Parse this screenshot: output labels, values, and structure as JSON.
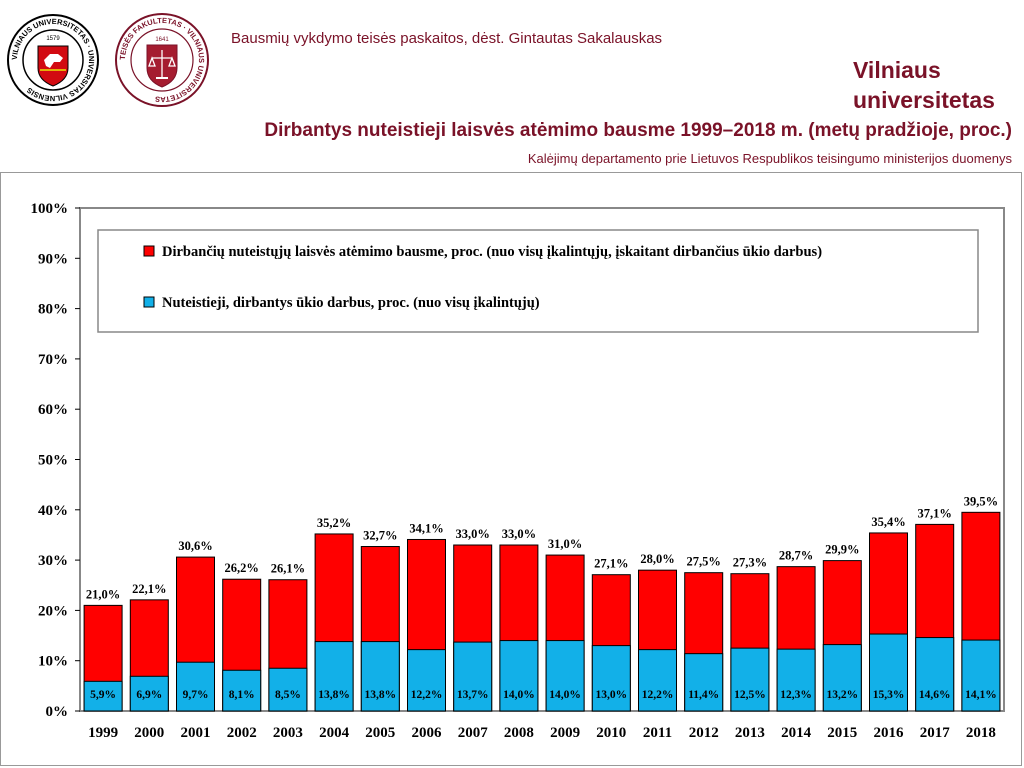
{
  "header": {
    "title": "Bausmių vykdymo teisės paskaitos, dėst. Gintautas Sakalauskas",
    "logo_left_text": "VILNIAUS UNIVERSITETAS · UNIVERSITAS VILNENSIS",
    "logo_left_year": "1579",
    "logo_right_text": "TEISĖS FAKULTETAS · VILNIAUS UNIVERSITETAS",
    "logo_right_year": "1641",
    "brand_line1": "Vilniaus",
    "brand_line2": "universitetas"
  },
  "chart_title": "Dirbantys nuteistieji laisvės atėmimo bausme 1999–2018 m. (metų pradžioje, proc.)",
  "source": "Kalėjimų departamento prie Lietuvos Respublikos teisingumo ministerijos duomenys",
  "colors": {
    "red": "#ff0000",
    "blue": "#12b0e8",
    "brand": "#7a1228"
  },
  "chart_data": {
    "type": "bar",
    "categories": [
      "1999",
      "2000",
      "2001",
      "2002",
      "2003",
      "2004",
      "2005",
      "2006",
      "2007",
      "2008",
      "2009",
      "2010",
      "2011",
      "2012",
      "2013",
      "2014",
      "2015",
      "2016",
      "2017",
      "2018"
    ],
    "series": [
      {
        "name": "Dirbančių nuteistųjų laisvės atėmimo bausme, proc. (nuo visų įkalintųjų, įskaitant dirbančius ūkio darbus)",
        "values": [
          21.0,
          22.1,
          30.6,
          26.2,
          26.1,
          35.2,
          32.7,
          34.1,
          33.0,
          33.0,
          31.0,
          27.1,
          28.0,
          27.5,
          27.3,
          28.7,
          29.9,
          35.4,
          37.1,
          39.5
        ],
        "labels": [
          "21,0%",
          "22,1%",
          "30,6%",
          "26,2%",
          "26,1%",
          "35,2%",
          "32,7%",
          "34,1%",
          "33,0%",
          "33,0%",
          "31,0%",
          "27,1%",
          "28,0%",
          "27,5%",
          "27,3%",
          "28,7%",
          "29,9%",
          "35,4%",
          "37,1%",
          "39,5%"
        ]
      },
      {
        "name": "Nuteistieji, dirbantys ūkio darbus, proc. (nuo visų įkalintųjų)",
        "values": [
          5.9,
          6.9,
          9.7,
          8.1,
          8.5,
          13.8,
          13.8,
          12.2,
          13.7,
          14.0,
          14.0,
          13.0,
          12.2,
          11.4,
          12.5,
          12.3,
          13.2,
          15.3,
          14.6,
          14.1
        ],
        "labels": [
          "5,9%",
          "6,9%",
          "9,7%",
          "8,1%",
          "8,5%",
          "13,8%",
          "13,8%",
          "12,2%",
          "13,7%",
          "14,0%",
          "14,0%",
          "13,0%",
          "12,2%",
          "11,4%",
          "12,5%",
          "12,3%",
          "13,2%",
          "15,3%",
          "14,6%",
          "14,1%"
        ]
      }
    ],
    "ylim": [
      0,
      100
    ],
    "yticks": [
      "0%",
      "10%",
      "20%",
      "30%",
      "40%",
      "50%",
      "60%",
      "70%",
      "80%",
      "90%",
      "100%"
    ],
    "legend": "top, inside plot",
    "grid": false
  }
}
